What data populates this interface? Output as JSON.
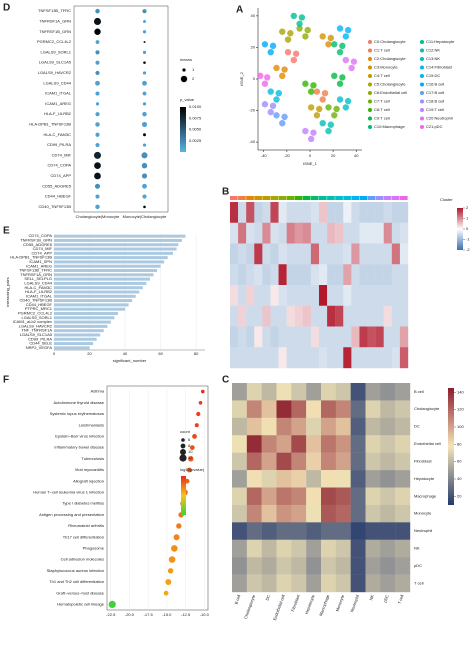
{
  "chart_data": [
    {
      "type": "dot_matrix",
      "panel": "D",
      "categories": [
        "TNFSF13B_TFRC",
        "TNFRSF1A_GRN",
        "TNFRSF1B_GRN",
        "PGRMC2_CCL4L2",
        "LGALS9_SORL1",
        "LGALS9_SLC1A5",
        "LGALS9_HAVCR2",
        "LGALS9_CD44",
        "ICAM1_ITGAL",
        "ICAM1_AREG",
        "HLA-F_LILRB2",
        "HLA-DPB1_TNFSF13B",
        "HLA-C_FAM3C",
        "CD99_PILRA",
        "CD74_MIF",
        "CD74_COPA",
        "CD74_APP",
        "CD55_ADGRE5",
        "CD44_HBEGF",
        "CD40_TNFSF13B"
      ],
      "columns": [
        "Cholangiocyte|Monocyte",
        "Monocyte|Cholangiocyte"
      ],
      "means": [
        [
          1.4,
          1.3
        ],
        [
          2.2,
          0.9
        ],
        [
          2.0,
          1.0
        ],
        [
          1.2,
          0.6
        ],
        [
          1.3,
          1.0
        ],
        [
          1.3,
          0.8
        ],
        [
          1.3,
          1.0
        ],
        [
          1.5,
          1.5
        ],
        [
          1.3,
          1.2
        ],
        [
          1.0,
          1.0
        ],
        [
          1.3,
          1.4
        ],
        [
          1.4,
          1.6
        ],
        [
          1.3,
          0.9
        ],
        [
          1.3,
          1.0
        ],
        [
          2.2,
          1.9
        ],
        [
          2.1,
          1.7
        ],
        [
          2.1,
          1.6
        ],
        [
          1.6,
          1.5
        ],
        [
          1.3,
          1.3
        ],
        [
          1.4,
          0.8
        ]
      ],
      "p_values": [
        [
          0.002,
          0.002
        ],
        [
          0.009,
          0.001
        ],
        [
          0.01,
          0.001
        ],
        [
          0.001,
          0.01
        ],
        [
          0.002,
          0.001
        ],
        [
          0.001,
          0.01
        ],
        [
          0.002,
          0.001
        ],
        [
          0.001,
          0.001
        ],
        [
          0.001,
          0.001
        ],
        [
          0.001,
          0.001
        ],
        [
          0.001,
          0.001
        ],
        [
          0.001,
          0.001
        ],
        [
          0.001,
          0.01
        ],
        [
          0.001,
          0.001
        ],
        [
          0.008,
          0.002
        ],
        [
          0.009,
          0.002
        ],
        [
          0.009,
          0.002
        ],
        [
          0.002,
          0.001
        ],
        [
          0.001,
          0.001
        ],
        [
          0.001,
          0.01
        ]
      ],
      "size_legend": {
        "title": "means",
        "ticks": [
          1,
          2
        ]
      },
      "colorbar": {
        "title": "p_value",
        "lim": [
          0,
          0.01
        ],
        "ticks": [
          {
            "value": 0.01,
            "label": "0.0100"
          },
          0.0075,
          {
            "value": 0.005,
            "label": "0.0050"
          },
          0.0025
        ],
        "colors": [
          "#56b4e9",
          "#000000"
        ]
      }
    },
    {
      "type": "scatter",
      "panel": "A",
      "xlabel": "tSNE_1",
      "ylabel": "tSNE_2",
      "xlim": [
        -45,
        45
      ],
      "ylim": [
        -45,
        45
      ],
      "xticks": [
        -40,
        -20,
        0,
        20,
        40
      ],
      "yticks": [
        -40,
        -20,
        0,
        20,
        40
      ],
      "series": [
        {
          "name": "C0:Cholangiocyte",
          "color": "#F8766D",
          "x": [
            -19,
            -14,
            -12
          ],
          "y": [
            17,
            12,
            16
          ]
        },
        {
          "name": "C1:T cell",
          "color": "#EF7F49",
          "x": [
            6,
            11,
            13
          ],
          "y": [
            -8,
            -13,
            -9
          ]
        },
        {
          "name": "C2:Cholangiocyte",
          "color": "#E38900",
          "x": [
            -29,
            -24,
            -22
          ],
          "y": [
            7,
            2,
            6
          ]
        },
        {
          "name": "C3:Monocyte",
          "color": "#D39200",
          "x": [
            11,
            16,
            18
          ],
          "y": [
            27,
            22,
            26
          ]
        },
        {
          "name": "C4:T cell",
          "color": "#C09B00",
          "x": [
            1,
            6,
            8
          ],
          "y": [
            -18,
            -23,
            -19
          ]
        },
        {
          "name": "C5:Cholangiocyte",
          "color": "#A9A400",
          "x": [
            -24,
            -19,
            -17
          ],
          "y": [
            30,
            25,
            29
          ]
        },
        {
          "name": "C6:Endothelial cell",
          "color": "#8EAB00",
          "x": [
            -9,
            -4,
            -2
          ],
          "y": [
            32,
            27,
            31
          ]
        },
        {
          "name": "C7:T cell",
          "color": "#6BB100",
          "x": [
            16,
            21,
            23
          ],
          "y": [
            -18,
            -23,
            -19
          ]
        },
        {
          "name": "C8:T cell",
          "color": "#31B600",
          "x": [
            -4,
            1,
            3
          ],
          "y": [
            -3,
            -8,
            -4
          ]
        },
        {
          "name": "C9:T cell",
          "color": "#00BA42",
          "x": [
            21,
            26,
            28
          ],
          "y": [
            2,
            -3,
            1
          ]
        },
        {
          "name": "C10:Macrophage",
          "color": "#00BD6F",
          "x": [
            21,
            26,
            28
          ],
          "y": [
            22,
            17,
            21
          ]
        },
        {
          "name": "C11:Hepatocyte",
          "color": "#00BF92",
          "x": [
            -14,
            -9,
            -7
          ],
          "y": [
            40,
            35,
            39
          ]
        },
        {
          "name": "C12:NK",
          "color": "#00C0B1",
          "x": [
            11,
            16,
            18
          ],
          "y": [
            -28,
            -33,
            -29
          ]
        },
        {
          "name": "C13:NK",
          "color": "#00BFCC",
          "x": [
            26,
            31,
            33
          ],
          "y": [
            -13,
            -18,
            -14
          ]
        },
        {
          "name": "C14:Fibroblast",
          "color": "#00BCE3",
          "x": [
            -34,
            -29,
            -27
          ],
          "y": [
            -8,
            -13,
            -9
          ]
        },
        {
          "name": "C15:DC",
          "color": "#00B5F5",
          "x": [
            26,
            31,
            33
          ],
          "y": [
            32,
            27,
            31
          ]
        },
        {
          "name": "C16:B cell",
          "color": "#00ABFD",
          "x": [
            -39,
            -34,
            -32
          ],
          "y": [
            22,
            17,
            21
          ]
        },
        {
          "name": "C17:B cell",
          "color": "#619CFF",
          "x": [
            -29,
            -24,
            -22
          ],
          "y": [
            -23,
            -28,
            -24
          ]
        },
        {
          "name": "C18:B cell",
          "color": "#9B8EFF",
          "x": [
            -39,
            -34,
            -32
          ],
          "y": [
            -16,
            -21,
            -17
          ]
        },
        {
          "name": "C19:T cell",
          "color": "#C27FFF",
          "x": [
            -4,
            1,
            3
          ],
          "y": [
            -33,
            -38,
            -34
          ]
        },
        {
          "name": "C20:Neutrophil",
          "color": "#DE71F9",
          "x": [
            31,
            36,
            38
          ],
          "y": [
            12,
            7,
            11
          ]
        },
        {
          "name": "C21:pDC",
          "color": "#F066EA",
          "x": [
            -43,
            -39,
            -37
          ],
          "y": [
            2,
            -3,
            1
          ]
        }
      ]
    },
    {
      "type": "heatmap",
      "panel": "B",
      "legend_title": "Cluster",
      "values": [
        [
          1.8,
          -0.5,
          1.5,
          -0.6,
          -0.5,
          1.6,
          -0.3,
          -0.5,
          -0.5,
          -0.5,
          -0.4,
          0.5,
          -0.6,
          -0.6,
          -0.2,
          -0.5,
          -0.6,
          -0.6,
          -0.6,
          -0.5,
          -0.6,
          -0.6
        ],
        [
          -0.4,
          1.2,
          -0.4,
          -0.5,
          1.0,
          -0.4,
          -0.5,
          1.1,
          0.9,
          1.0,
          -0.5,
          -0.5,
          0.6,
          0.5,
          -0.5,
          -0.5,
          -0.3,
          -0.3,
          -0.3,
          1.0,
          -0.5,
          -0.4
        ],
        [
          -0.6,
          -0.5,
          -0.6,
          1.7,
          -0.5,
          -0.6,
          -0.4,
          -0.5,
          -0.5,
          -0.5,
          1.3,
          -0.5,
          -0.5,
          -0.5,
          -0.4,
          0.9,
          -0.5,
          -0.5,
          -0.5,
          -0.5,
          1.2,
          -0.3
        ],
        [
          -0.5,
          -0.6,
          -0.5,
          -0.4,
          -0.6,
          -0.5,
          1.9,
          -0.6,
          -0.6,
          -0.6,
          -0.4,
          -0.3,
          -0.6,
          -0.6,
          0.8,
          -0.5,
          -0.6,
          -0.6,
          -0.6,
          -0.6,
          -0.5,
          -0.5
        ],
        [
          0.3,
          -0.5,
          0.4,
          -0.5,
          -0.5,
          0.2,
          -0.4,
          -0.5,
          -0.5,
          -0.5,
          -0.5,
          2.0,
          -0.5,
          -0.5,
          -0.3,
          -0.5,
          -0.5,
          -0.5,
          -0.5,
          -0.5,
          -0.5,
          -0.5
        ],
        [
          -0.5,
          0.4,
          -0.5,
          -0.5,
          0.5,
          -0.5,
          -0.5,
          0.3,
          0.4,
          0.5,
          -0.5,
          -0.5,
          1.8,
          1.6,
          -0.5,
          -0.5,
          -0.5,
          -0.5,
          -0.5,
          0.3,
          -0.5,
          -0.5
        ],
        [
          -0.6,
          -0.5,
          -0.6,
          0.2,
          -0.5,
          -0.6,
          -0.5,
          -0.5,
          -0.5,
          -0.5,
          0.3,
          -0.5,
          -0.5,
          -0.5,
          -0.5,
          0.6,
          1.7,
          1.5,
          1.6,
          -0.5,
          -0.5,
          0.8
        ],
        [
          -0.5,
          -0.5,
          -0.5,
          -0.5,
          -0.5,
          -0.5,
          0.2,
          -0.5,
          -0.5,
          -0.5,
          -0.5,
          -0.4,
          -0.5,
          -0.5,
          1.9,
          -0.5,
          -0.5,
          -0.5,
          -0.5,
          -0.5,
          -0.4,
          1.4
        ]
      ],
      "zlim": [
        -2,
        2
      ],
      "zticks": [
        -2,
        -1,
        0,
        1,
        2
      ],
      "colors": [
        "#3a6fb0",
        "#ffffff",
        "#b2182b"
      ]
    },
    {
      "type": "hbar",
      "panel": "E",
      "xlabel": "significant_number",
      "ylabel": "interacting_pairs",
      "categories": [
        "CD74_COPA",
        "TNFRSF1B_GRN",
        "CD55_ADGRE5",
        "CD74_MIF",
        "CD74_APP",
        "HLA-DPB1_TNFSF13B",
        "ICAM1_SPN",
        "ICAM1_AREG",
        "TNFSF13B_TFRC",
        "TNFRSF1A_GRN",
        "SELL_SELPLG",
        "LGALS9_CD44",
        "HLA-C_FAM3C",
        "HLA-F_LILRB2",
        "ICAM1_ITGAL",
        "CD40_TNFSF13B",
        "CD44_HBEGF",
        "PTPRC_MRC1",
        "PGRMC2_CCL4L2",
        "LGALS9_SORL1",
        "ICAM1_aLb2 complex",
        "LGALS9_HAVCR2",
        "TNF_TNFRSF1A",
        "LGALS9_SLC1A5",
        "CD99_PILRA",
        "CD44_SELE",
        "NRP2_VEGFA"
      ],
      "values": [
        74,
        72,
        70,
        69,
        67,
        64,
        62,
        60,
        58,
        56,
        54,
        52,
        50,
        48,
        46,
        44,
        42,
        40,
        36,
        34,
        32,
        30,
        28,
        26,
        24,
        22,
        20
      ],
      "xlim": [
        0,
        85
      ],
      "xticks": [
        0,
        20,
        40,
        60,
        80
      ],
      "color": "#abc9e0"
    },
    {
      "type": "dot",
      "panel": "F",
      "categories": [
        "Asthma",
        "Autoimmune thyroid disease",
        "Systemic lupus erythematosus",
        "Leishmaniasis",
        "Epstein−Barr virus infection",
        "Inflammatory bowel disease",
        "Tuberculosis",
        "Viral myocarditis",
        "Allograft rejection",
        "Human T−cell leukemia virus 1 infection",
        "Type I diabetes mellitus",
        "Antigen processing and presentation",
        "Rheumatoid arthritis",
        "Th17 cell differentiation",
        "Phagosome",
        "Cell adhesion molecules",
        "Staphylococcus aureus infection",
        "Th1 and Th2 cell differentiation",
        "Graft−versus−host disease",
        "Hematopoietic cell lineage"
      ],
      "values": [
        -10.2,
        -10.5,
        -10.8,
        -11.0,
        -11.3,
        -11.6,
        -11.8,
        -12.0,
        -12.3,
        -12.6,
        -12.9,
        -13.1,
        -13.4,
        -13.7,
        -14.0,
        -14.3,
        -14.5,
        -14.8,
        -15.1,
        -22.3
      ],
      "sizes": [
        6,
        6,
        7,
        7,
        8,
        8,
        9,
        8,
        8,
        10,
        8,
        9,
        9,
        10,
        11,
        11,
        9,
        10,
        8,
        12
      ],
      "xlim": [
        -23,
        -9.5
      ],
      "xticks": [
        -22.5,
        {
          "value": -20,
          "label": "-20.0"
        },
        -17.5,
        {
          "value": -15,
          "label": "-15.0"
        },
        -12.5,
        {
          "value": -10,
          "label": "-10.0"
        }
      ],
      "size_legend": {
        "title": "count",
        "ticks": [
          6,
          8,
          10,
          12
        ]
      },
      "colorbar": {
        "title": "log10(pvalue)",
        "lim": [
          -22.5,
          -10
        ],
        "colors": [
          "#3bd13b",
          "#f5c518",
          "#e8291c"
        ]
      }
    },
    {
      "type": "heatmap",
      "panel": "C",
      "categories": [
        "B cell",
        "Cholangiocyte",
        "DC",
        "Endothelial cell",
        "Fibroblast",
        "Hepatocyte",
        "Macrophage",
        "Monocyte",
        "Neutrophil",
        "NK",
        "pDC",
        "T cell"
      ],
      "values": [
        [
          50,
          70,
          60,
          75,
          65,
          50,
          70,
          65,
          20,
          50,
          45,
          50
        ],
        [
          70,
          110,
          90,
          140,
          120,
          80,
          120,
          110,
          30,
          70,
          60,
          65
        ],
        [
          60,
          90,
          80,
          110,
          100,
          70,
          100,
          90,
          25,
          60,
          55,
          60
        ],
        [
          75,
          140,
          110,
          100,
          130,
          90,
          115,
          105,
          30,
          70,
          65,
          70
        ],
        [
          65,
          120,
          100,
          130,
          110,
          85,
          110,
          100,
          30,
          65,
          60,
          65
        ],
        [
          50,
          80,
          70,
          90,
          85,
          60,
          80,
          75,
          25,
          50,
          45,
          50
        ],
        [
          70,
          120,
          100,
          115,
          110,
          80,
          130,
          125,
          30,
          70,
          65,
          70
        ],
        [
          65,
          110,
          90,
          105,
          100,
          75,
          125,
          120,
          30,
          65,
          60,
          65
        ],
        [
          20,
          30,
          25,
          30,
          30,
          25,
          30,
          30,
          15,
          20,
          20,
          20
        ],
        [
          50,
          70,
          60,
          70,
          65,
          50,
          70,
          65,
          20,
          55,
          50,
          55
        ],
        [
          45,
          60,
          55,
          65,
          60,
          45,
          65,
          60,
          20,
          50,
          45,
          50
        ],
        [
          50,
          65,
          60,
          70,
          65,
          50,
          70,
          65,
          20,
          55,
          50,
          55
        ]
      ],
      "zlim": [
        10,
        145
      ],
      "zticks": [
        20,
        40,
        60,
        80,
        100,
        120,
        140
      ],
      "colors": [
        "#24386b",
        "#f5e6b8",
        "#8c1d2e"
      ]
    }
  ]
}
